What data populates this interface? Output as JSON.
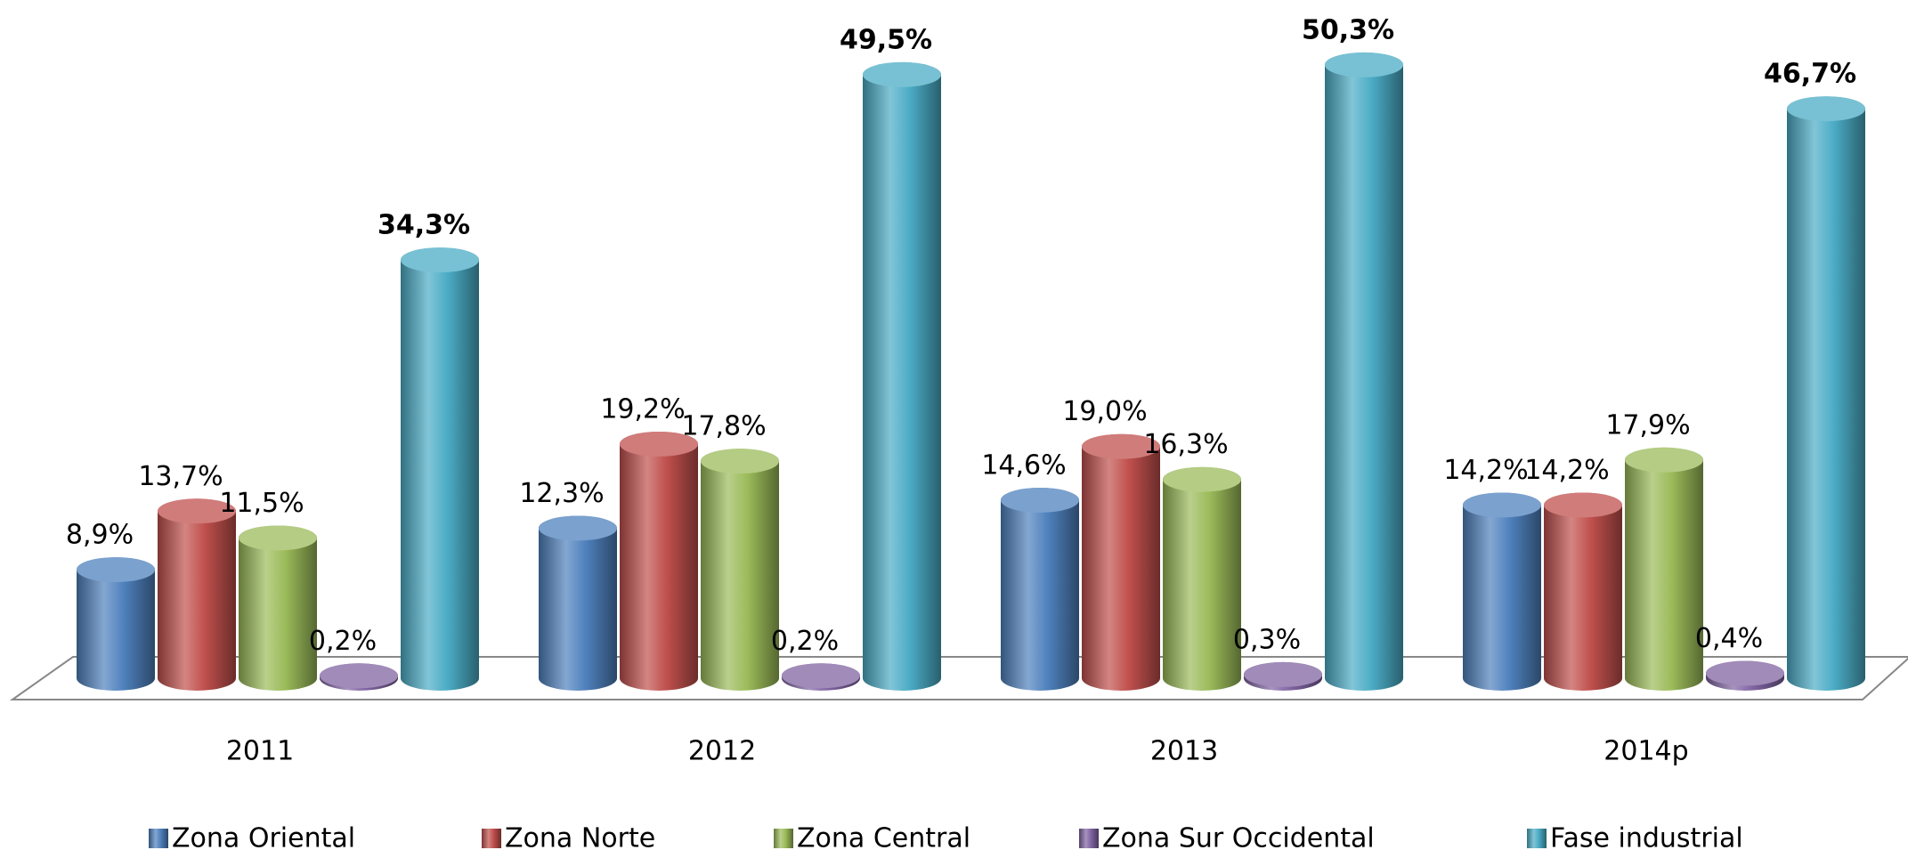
{
  "chart_data": {
    "type": "bar3d",
    "categories": [
      "2011",
      "2012",
      "2013",
      "2014p"
    ],
    "series": [
      {
        "name": "Zona Oriental",
        "color": "#4f81bd",
        "values": [
          8.9,
          12.3,
          14.6,
          14.2
        ],
        "value_labels": [
          "8,9%",
          "12,3%",
          "14,6%",
          "14,2%"
        ]
      },
      {
        "name": "Zona Norte",
        "color": "#c0504d",
        "values": [
          13.7,
          19.2,
          19.0,
          14.2
        ],
        "value_labels": [
          "13,7%",
          "19,2%",
          "19,0%",
          "14,2%"
        ]
      },
      {
        "name": "Zona Central",
        "color": "#9bbb59",
        "values": [
          11.5,
          17.8,
          16.3,
          17.9
        ],
        "value_labels": [
          "11,5%",
          "17,8%",
          "16,3%",
          "17,9%"
        ]
      },
      {
        "name": "Zona Sur Occidental",
        "color": "#8064a2",
        "values": [
          0.2,
          0.2,
          0.3,
          0.4
        ],
        "value_labels": [
          "0,2%",
          "0,2%",
          "0,3%",
          "0,4%"
        ]
      },
      {
        "name": "Fase industrial",
        "color": "#4bacc6",
        "values": [
          34.3,
          49.5,
          50.3,
          46.7
        ],
        "value_labels": [
          "34,3%",
          "49,5%",
          "50,3%",
          "46,7%"
        ]
      }
    ],
    "legend": "bottom"
  }
}
